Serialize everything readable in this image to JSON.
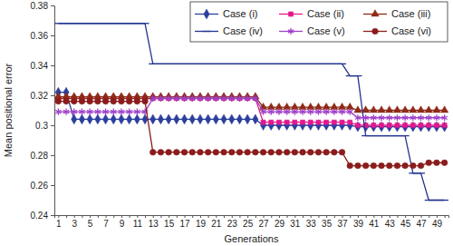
{
  "chart_data": {
    "type": "line",
    "x_label": "Generations",
    "y_label": "Mean positional error",
    "categories": [
      1,
      null,
      3,
      null,
      5,
      null,
      7,
      null,
      9,
      null,
      11,
      null,
      13,
      null,
      15,
      null,
      17,
      null,
      19,
      null,
      21,
      null,
      23,
      null,
      25,
      null,
      27,
      null,
      29,
      null,
      31,
      null,
      33,
      null,
      35,
      null,
      37,
      null,
      39,
      null,
      41,
      null,
      43,
      null,
      45,
      null,
      47,
      null,
      49,
      null
    ],
    "ylim": [
      0.24,
      0.38
    ],
    "yticks": [
      0.24,
      0.26,
      0.28,
      0.3,
      0.32,
      0.34,
      0.36,
      0.38
    ],
    "grid": false,
    "legend": "top-right",
    "series": [
      {
        "name": "Case (i)",
        "color": "#2b3f9e",
        "marker": "diamond",
        "values": [
          0.322,
          0.322,
          0.304,
          0.304,
          0.304,
          0.304,
          0.304,
          0.304,
          0.304,
          0.304,
          0.304,
          0.304,
          0.304,
          0.304,
          0.304,
          0.304,
          0.304,
          0.304,
          0.304,
          0.304,
          0.304,
          0.304,
          0.304,
          0.304,
          0.304,
          0.304,
          0.3,
          0.3,
          0.3,
          0.3,
          0.3,
          0.3,
          0.3,
          0.3,
          0.3,
          0.3,
          0.3,
          0.3,
          0.299,
          0.299,
          0.299,
          0.299,
          0.299,
          0.299,
          0.299,
          0.299,
          0.299,
          0.299,
          0.299,
          0.299
        ]
      },
      {
        "name": "Case (ii)",
        "color": "#e0198c",
        "marker": "square",
        "values": [
          0.318,
          0.318,
          0.318,
          0.318,
          0.318,
          0.318,
          0.318,
          0.318,
          0.318,
          0.318,
          0.318,
          0.318,
          0.318,
          0.318,
          0.318,
          0.318,
          0.318,
          0.318,
          0.318,
          0.318,
          0.318,
          0.318,
          0.318,
          0.318,
          0.318,
          0.318,
          0.302,
          0.302,
          0.302,
          0.302,
          0.302,
          0.302,
          0.302,
          0.302,
          0.302,
          0.302,
          0.302,
          0.302,
          0.3,
          0.3,
          0.3,
          0.3,
          0.3,
          0.3,
          0.3,
          0.3,
          0.3,
          0.3,
          0.3,
          0.3
        ]
      },
      {
        "name": "Case (iii)",
        "color": "#8e2a16",
        "marker": "triangle",
        "values": [
          0.319,
          0.319,
          0.319,
          0.319,
          0.319,
          0.319,
          0.319,
          0.319,
          0.319,
          0.319,
          0.319,
          0.319,
          0.319,
          0.319,
          0.319,
          0.319,
          0.319,
          0.319,
          0.319,
          0.319,
          0.319,
          0.319,
          0.319,
          0.319,
          0.319,
          0.319,
          0.312,
          0.312,
          0.312,
          0.312,
          0.312,
          0.312,
          0.312,
          0.312,
          0.312,
          0.312,
          0.312,
          0.312,
          0.31,
          0.31,
          0.31,
          0.31,
          0.31,
          0.31,
          0.31,
          0.31,
          0.31,
          0.31,
          0.31,
          0.31
        ]
      },
      {
        "name": "Case (iv)",
        "color": "#22338f",
        "marker": "dash",
        "values": [
          0.368,
          0.368,
          0.368,
          0.368,
          0.368,
          0.368,
          0.368,
          0.368,
          0.368,
          0.368,
          0.368,
          0.368,
          0.341,
          0.341,
          0.341,
          0.341,
          0.341,
          0.341,
          0.341,
          0.341,
          0.341,
          0.341,
          0.341,
          0.341,
          0.341,
          0.341,
          0.341,
          0.341,
          0.341,
          0.341,
          0.341,
          0.341,
          0.341,
          0.341,
          0.341,
          0.341,
          0.341,
          0.333,
          0.333,
          0.293,
          0.293,
          0.293,
          0.293,
          0.293,
          0.293,
          0.268,
          0.268,
          0.25,
          0.25,
          0.25
        ]
      },
      {
        "name": "Case (v)",
        "color": "#a040c8",
        "marker": "star",
        "values": [
          0.309,
          0.309,
          0.309,
          0.309,
          0.309,
          0.309,
          0.309,
          0.309,
          0.309,
          0.309,
          0.309,
          0.309,
          0.318,
          0.318,
          0.318,
          0.318,
          0.318,
          0.318,
          0.318,
          0.318,
          0.318,
          0.318,
          0.318,
          0.318,
          0.318,
          0.318,
          0.309,
          0.309,
          0.309,
          0.309,
          0.309,
          0.309,
          0.309,
          0.309,
          0.309,
          0.309,
          0.309,
          0.309,
          0.305,
          0.305,
          0.305,
          0.305,
          0.305,
          0.305,
          0.305,
          0.305,
          0.305,
          0.305,
          0.305,
          0.305
        ]
      },
      {
        "name": "Case (vi)",
        "color": "#8b1c1c",
        "marker": "circle",
        "values": [
          0.316,
          0.316,
          0.316,
          0.316,
          0.316,
          0.316,
          0.316,
          0.316,
          0.316,
          0.316,
          0.316,
          0.316,
          0.282,
          0.282,
          0.282,
          0.282,
          0.282,
          0.282,
          0.282,
          0.282,
          0.282,
          0.282,
          0.282,
          0.282,
          0.282,
          0.282,
          0.282,
          0.282,
          0.282,
          0.282,
          0.282,
          0.282,
          0.282,
          0.282,
          0.282,
          0.282,
          0.282,
          0.273,
          0.273,
          0.273,
          0.273,
          0.273,
          0.273,
          0.273,
          0.273,
          0.273,
          0.273,
          0.275,
          0.275,
          0.275
        ]
      }
    ]
  }
}
